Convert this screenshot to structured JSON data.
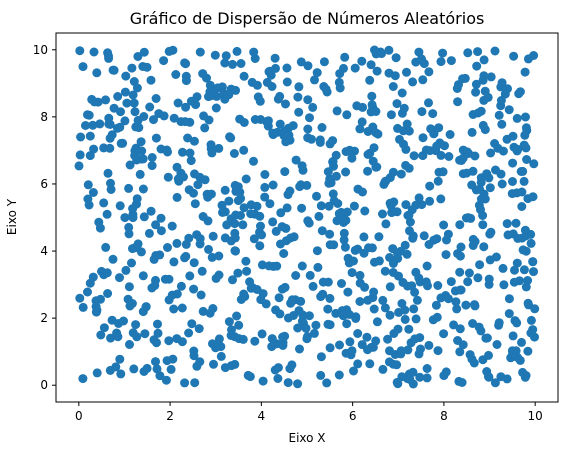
{
  "chart_data": {
    "type": "scatter",
    "title": "Gráfico de Dispersão de Números Aleatórios",
    "xlabel": "Eixo X",
    "ylabel": "Eixo Y",
    "xlim": [
      -0.5,
      10.5
    ],
    "ylim": [
      -0.5,
      10.5
    ],
    "xticks": [
      0,
      2,
      4,
      6,
      8,
      10
    ],
    "yticks": [
      0,
      2,
      4,
      6,
      8,
      10
    ],
    "xtick_labels": [
      "0",
      "2",
      "4",
      "6",
      "8",
      "10"
    ],
    "ytick_labels": [
      "0",
      "2",
      "4",
      "6",
      "8",
      "10"
    ],
    "grid": false,
    "marker_color": "#1f77b4",
    "point_count": 1000
  }
}
